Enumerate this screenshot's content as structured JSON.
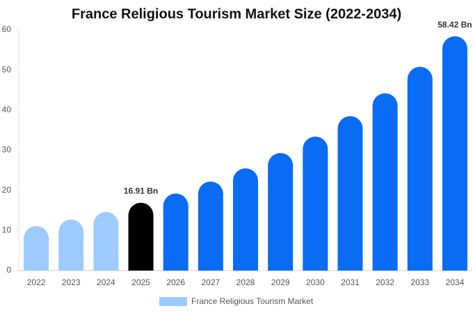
{
  "chart_data": {
    "type": "bar",
    "title": "France Religious Tourism Market Size (2022-2034)",
    "categories": [
      "2022",
      "2023",
      "2024",
      "2025",
      "2026",
      "2027",
      "2028",
      "2029",
      "2030",
      "2031",
      "2032",
      "2033",
      "2034"
    ],
    "series": [
      {
        "name": "France Religious Tourism Market",
        "color": "#9ecbff",
        "colors": [
          "#9ecbff",
          "#9ecbff",
          "#9ecbff",
          "#000000",
          "#0a6cf5",
          "#0a6cf5",
          "#0a6cf5",
          "#0a6cf5",
          "#0a6cf5",
          "#0a6cf5",
          "#0a6cf5",
          "#0a6cf5",
          "#0a6cf5"
        ],
        "values": [
          11.1,
          12.7,
          14.6,
          16.91,
          19.2,
          22.2,
          25.5,
          29.3,
          33.4,
          38.5,
          44.2,
          50.8,
          58.42
        ],
        "value_labels": [
          null,
          null,
          null,
          "16.91 Bn",
          null,
          null,
          null,
          null,
          null,
          null,
          null,
          null,
          "58.42 Bn"
        ]
      }
    ],
    "ylim": [
      0,
      60
    ],
    "yticks": [
      0,
      10,
      20,
      30,
      40,
      50,
      60
    ],
    "grid": false,
    "legend": "bottom"
  }
}
